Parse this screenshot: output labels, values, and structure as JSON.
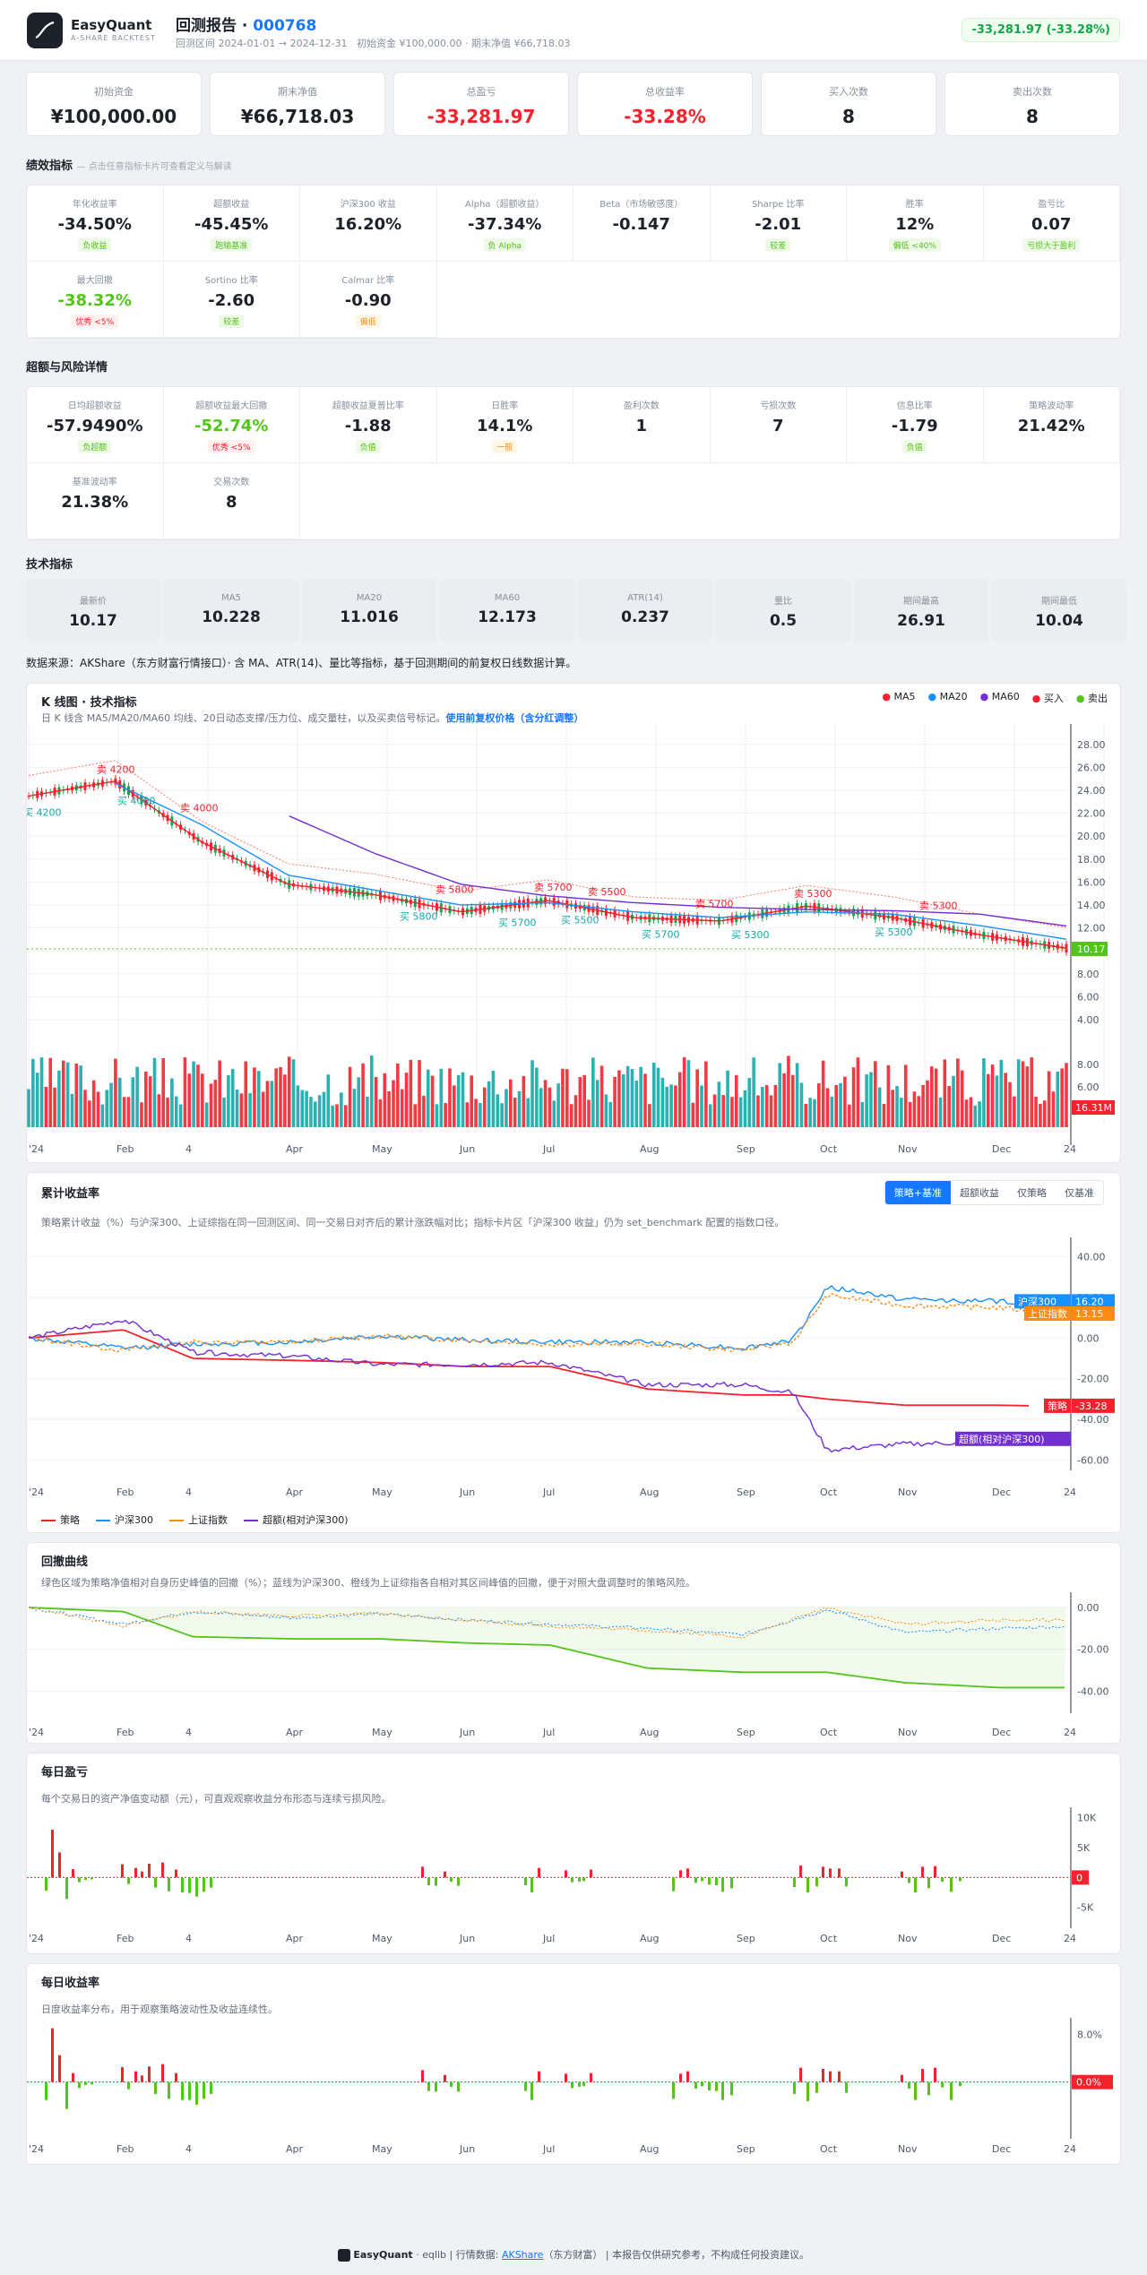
{
  "header": {
    "brand": "EasyQuant",
    "brand_sub": "A-SHARE BACKTEST",
    "title_prefix": "回测报告 · ",
    "code": "000768",
    "range": "回测区间 2024-01-01 → 2024-12-31",
    "initial": "初始资金 ¥100,000.00",
    "final": "期末净值 ¥66,718.03",
    "badge": "-33,281.97 (-33.28%)"
  },
  "summary": [
    {
      "label": "初始资金",
      "value": "¥100,000.00",
      "color": "#1d2129"
    },
    {
      "label": "期末净值",
      "value": "¥66,718.03",
      "color": "#1d2129"
    },
    {
      "label": "总盈亏",
      "value": "-33,281.97",
      "color": "#f5222d"
    },
    {
      "label": "总收益率",
      "value": "-33.28%",
      "color": "#f5222d"
    },
    {
      "label": "买入次数",
      "value": "8",
      "color": "#1d2129"
    },
    {
      "label": "卖出次数",
      "value": "8",
      "color": "#1d2129"
    }
  ],
  "perf": {
    "title": "绩效指标",
    "hint": "— 点击任意指标卡片可查看定义与解读",
    "items": [
      {
        "label": "年化收益率",
        "value": "-34.50%",
        "tag": "负收益",
        "tc": "g"
      },
      {
        "label": "超额收益",
        "value": "-45.45%",
        "tag": "跑输基准",
        "tc": "g"
      },
      {
        "label": "沪深300 收益",
        "value": "16.20%",
        "tag": "",
        "tc": ""
      },
      {
        "label": "Alpha（超额收益）",
        "value": "-37.34%",
        "tag": "负 Alpha",
        "tc": "g"
      },
      {
        "label": "Beta（市场敏感度）",
        "value": "-0.147",
        "tag": "",
        "tc": ""
      },
      {
        "label": "Sharpe 比率",
        "value": "-2.01",
        "tag": "较差",
        "tc": "g"
      },
      {
        "label": "胜率",
        "value": "12%",
        "tag": "偏低 <40%",
        "tc": "g"
      },
      {
        "label": "盈亏比",
        "value": "0.07",
        "tag": "亏损大于盈利",
        "tc": "g"
      },
      {
        "label": "最大回撤",
        "value": "-38.32%",
        "tag": "优秀 <5%",
        "tc": "r",
        "vc": "#52c41a"
      },
      {
        "label": "Sortino 比率",
        "value": "-2.60",
        "tag": "较差",
        "tc": "g"
      },
      {
        "label": "Calmar 比率",
        "value": "-0.90",
        "tag": "偏低",
        "tc": "o"
      }
    ]
  },
  "excess": {
    "title": "超额与风险详情",
    "items": [
      {
        "label": "日均超额收益",
        "value": "-57.9490%",
        "tag": "负超额",
        "tc": "g"
      },
      {
        "label": "超额收益最大回撤",
        "value": "-52.74%",
        "tag": "优秀 <5%",
        "tc": "r",
        "vc": "#52c41a"
      },
      {
        "label": "超额收益夏普比率",
        "value": "-1.88",
        "tag": "负值",
        "tc": "g"
      },
      {
        "label": "日胜率",
        "value": "14.1%",
        "tag": "一般",
        "tc": "o"
      },
      {
        "label": "盈利次数",
        "value": "1",
        "tag": "",
        "tc": ""
      },
      {
        "label": "亏损次数",
        "value": "7",
        "tag": "",
        "tc": ""
      },
      {
        "label": "信息比率",
        "value": "-1.79",
        "tag": "负值",
        "tc": "g"
      },
      {
        "label": "策略波动率",
        "value": "21.42%",
        "tag": "",
        "tc": ""
      },
      {
        "label": "基准波动率",
        "value": "21.38%",
        "tag": "",
        "tc": ""
      },
      {
        "label": "交易次数",
        "value": "8",
        "tag": "",
        "tc": ""
      }
    ]
  },
  "tech": {
    "title": "技术指标",
    "items": [
      {
        "label": "最新价",
        "value": "10.17"
      },
      {
        "label": "MA5",
        "value": "10.228"
      },
      {
        "label": "MA20",
        "value": "11.016"
      },
      {
        "label": "MA60",
        "value": "12.173"
      },
      {
        "label": "ATR(14)",
        "value": "0.237"
      },
      {
        "label": "量比",
        "value": "0.5"
      },
      {
        "label": "期间最高",
        "value": "26.91"
      },
      {
        "label": "期间最低",
        "value": "10.04"
      }
    ]
  },
  "source_note": "数据来源：AKShare（东方财富行情接口）· 含 MA、ATR(14)、量比等指标，基于回测期间的前复权日线数据计算。",
  "kline": {
    "title": "K 线图 · 技术指标",
    "desc": "日 K 线含 MA5/MA20/MA60 均线、20日动态支撑/压力位、成交量柱，以及买卖信号标记。",
    "desc_link": "使用前复权价格（含分红调整）",
    "legend": [
      {
        "name": "MA5",
        "color": "#f5222d"
      },
      {
        "name": "MA20",
        "color": "#1890ff"
      },
      {
        "name": "MA60",
        "color": "#722ed1"
      },
      {
        "name": "买入",
        "color": "#f5222d"
      },
      {
        "name": "卖出",
        "color": "#52c41a"
      }
    ],
    "last_price": "10.17",
    "last_vol": "16.31M"
  },
  "cum": {
    "title": "累计收益率",
    "desc": "策略累计收益（%）与沪深300、上证综指在同一回测区间、同一交易日对齐后的累计涨跌幅对比；指标卡片区「沪深300 收益」仍为 set_benchmark 配置的指数口径。",
    "tabs": [
      "策略+基准",
      "超额收益",
      "仅策略",
      "仅基准"
    ],
    "legend": [
      {
        "name": "策略",
        "color": "#f5222d"
      },
      {
        "name": "沪深300",
        "color": "#1890ff"
      },
      {
        "name": "上证指数",
        "color": "#fa8c16"
      },
      {
        "name": "超额(相对沪深300)",
        "color": "#722ed1"
      }
    ]
  },
  "dd": {
    "title": "回撤曲线",
    "desc": "绿色区域为策略净值相对自身历史峰值的回撤（%）；蓝线为沪深300、橙线为上证综指各自相对其区间峰值的回撤，便于对照大盘调整时的策略风险。"
  },
  "dpnl": {
    "title": "每日盈亏",
    "desc": "每个交易日的资产净值变动额（元），可直观观察收益分布形态与连续亏损风险。",
    "badge": "0"
  },
  "dret": {
    "title": "每日收益率",
    "desc": "日度收益率分布，用于观察策略波动性及收益连续性。",
    "badge": "0.0%"
  },
  "xlabels": [
    "'24",
    "Feb",
    "4",
    "Apr",
    "May",
    "Jun",
    "Jul",
    "Aug",
    "Sep",
    "Oct",
    "Nov",
    "Dec",
    "24"
  ],
  "chart_data": [
    {
      "type": "line",
      "title": "K 线图 · 技术指标",
      "x": [
        "2024-01-02",
        "2024-02-01",
        "2024-03-04",
        "2024-04-01",
        "2024-05-06",
        "2024-06-03",
        "2024-07-01",
        "2024-08-01",
        "2024-09-02",
        "2024-10-08",
        "2024-11-01",
        "2024-12-02",
        "2024-12-31"
      ],
      "series": [
        {
          "name": "MA5",
          "values": [
            23.5,
            24.8,
            19.5,
            15.8,
            14.9,
            13.4,
            14.4,
            12.9,
            12.6,
            13.9,
            12.9,
            11.4,
            10.23
          ]
        },
        {
          "name": "MA20",
          "values": [
            null,
            24.6,
            21.0,
            16.6,
            15.3,
            14.0,
            14.2,
            13.4,
            12.9,
            13.4,
            13.2,
            12.2,
            11.02
          ]
        },
        {
          "name": "MA60",
          "values": [
            null,
            null,
            null,
            21.8,
            18.5,
            15.8,
            14.8,
            14.2,
            13.8,
            13.6,
            13.5,
            13.2,
            12.17
          ]
        }
      ],
      "signals": [
        {
          "label": "买 4200",
          "type": "buy"
        },
        {
          "label": "卖 4200",
          "type": "sell"
        },
        {
          "label": "买 4000",
          "type": "buy"
        },
        {
          "label": "卖 4000",
          "type": "sell"
        },
        {
          "label": "买 5800",
          "type": "buy"
        },
        {
          "label": "卖 5800",
          "type": "sell"
        },
        {
          "label": "买 5700",
          "type": "buy"
        },
        {
          "label": "卖 5700",
          "type": "sell"
        },
        {
          "label": "买 5500",
          "type": "buy"
        },
        {
          "label": "卖 5500",
          "type": "sell"
        },
        {
          "label": "买 5700",
          "type": "buy"
        },
        {
          "label": "卖 5700",
          "type": "sell"
        },
        {
          "label": "买 5300",
          "type": "buy"
        },
        {
          "label": "卖 5300",
          "type": "sell"
        },
        {
          "label": "买 5300",
          "type": "buy"
        },
        {
          "label": "卖 5300",
          "type": "sell"
        }
      ],
      "yticks": [
        "4.00",
        "6.00",
        "8.00",
        "10.00",
        "12.00",
        "14.00",
        "16.00",
        "18.00",
        "20.00",
        "22.00",
        "24.00",
        "26.00",
        "28.00"
      ],
      "ylim": [
        4,
        29
      ]
    },
    {
      "type": "line",
      "title": "累计收益率",
      "x": [
        "2024-01-02",
        "2024-02-01",
        "2024-03-04",
        "2024-04-01",
        "2024-05-06",
        "2024-06-03",
        "2024-07-01",
        "2024-08-01",
        "2024-09-02",
        "2024-09-30",
        "2024-10-08",
        "2024-11-01",
        "2024-12-02",
        "2024-12-31"
      ],
      "series": [
        {
          "name": "策略",
          "values": [
            0,
            4,
            -10,
            -11,
            -12,
            -14,
            -14,
            -25,
            -28,
            -28,
            -30,
            -33,
            -33,
            -33.28
          ]
        },
        {
          "name": "沪深300",
          "values": [
            0,
            -5,
            -3,
            -2,
            1,
            -1,
            -2,
            -2,
            -5,
            -1,
            25,
            19,
            18,
            16.2
          ]
        },
        {
          "name": "上证指数",
          "values": [
            0,
            -6,
            -2,
            -2,
            1,
            -1,
            -3,
            -3,
            -6,
            -2,
            21,
            16,
            15,
            13.15
          ]
        },
        {
          "name": "超额(相对沪深300)",
          "values": [
            0,
            9,
            -7,
            -9,
            -13,
            -13,
            -12,
            -23,
            -23,
            -27,
            -55,
            -52,
            -51,
            -49.5
          ]
        }
      ],
      "yticks": [
        "-60.00",
        "-40.00",
        "-20.00",
        "0.00",
        "20.00",
        "40.00"
      ],
      "ylim": [
        -65,
        45
      ]
    },
    {
      "type": "area",
      "title": "回撤曲线",
      "x": [
        "2024-01-02",
        "2024-02-01",
        "2024-03-04",
        "2024-04-01",
        "2024-05-06",
        "2024-06-03",
        "2024-07-01",
        "2024-08-01",
        "2024-09-02",
        "2024-10-08",
        "2024-11-01",
        "2024-12-02",
        "2024-12-31"
      ],
      "series": [
        {
          "name": "策略",
          "values": [
            0,
            -2,
            -14,
            -15,
            -15,
            -17,
            -18,
            -29,
            -31,
            -31,
            -36,
            -38.32,
            -38.32
          ]
        },
        {
          "name": "沪深300",
          "values": [
            0,
            -8,
            -2,
            -5,
            -3,
            -6,
            -8,
            -10,
            -13,
            -1,
            -12,
            -10,
            -9
          ]
        },
        {
          "name": "上证指数",
          "values": [
            0,
            -9,
            -2,
            -4,
            -3,
            -6,
            -9,
            -11,
            -14,
            0,
            -8,
            -6,
            -6
          ]
        }
      ],
      "yticks": [
        "-40.00",
        "-20.00",
        "0.00"
      ],
      "ylim": [
        -42,
        3
      ]
    },
    {
      "type": "bar",
      "title": "每日盈亏",
      "yticks": [
        "-5K",
        "0",
        "5K",
        "10K"
      ],
      "ylim": [
        -7000,
        11000
      ],
      "values": [
        -2200,
        8000,
        4200,
        -3600,
        1400,
        -800,
        -400,
        -300,
        2200,
        -1100,
        1600,
        1000,
        2300,
        -1700,
        2500,
        -2300,
        1300,
        -2500,
        -2600,
        -3200,
        -2400,
        -1700,
        1800,
        -1300,
        -1400,
        1000,
        -700,
        -1400,
        -1300,
        -2500,
        1600,
        1200,
        -800,
        -700,
        -600,
        1300,
        -2300,
        1200,
        1500,
        -900,
        -600,
        -1200,
        -1300,
        -2400,
        -1800,
        -1600,
        2000,
        -2500,
        -1500,
        1800,
        1500,
        1500,
        -1500,
        1000,
        -900,
        -2500,
        1800,
        -1800,
        1900,
        -700,
        -2400,
        -600
      ]
    },
    {
      "type": "bar",
      "title": "每日收益率",
      "yticks": [
        "0.0%",
        "8.0%"
      ],
      "ylim": [
        -8,
        10
      ],
      "values": [
        -3,
        9,
        4.5,
        -4.5,
        1.5,
        -1,
        -0.5,
        -0.4,
        2.5,
        -1.2,
        1.8,
        1.1,
        2.6,
        -2,
        3,
        -2.8,
        1.5,
        -3,
        -3,
        -3.8,
        -2.8,
        -2,
        2,
        -1.5,
        -1.6,
        1.2,
        -0.8,
        -1.6,
        -1.5,
        -3,
        1.8,
        1.4,
        -1,
        -0.8,
        -0.7,
        1.5,
        -2.8,
        1.4,
        1.8,
        -1.1,
        -0.7,
        -1.4,
        -1.5,
        -3,
        -2.2,
        -2,
        2.4,
        -3.2,
        -1.8,
        2.2,
        1.8,
        1.8,
        -1.8,
        1.2,
        -1.1,
        -3,
        2.2,
        -2.2,
        2.4,
        -0.9,
        -3,
        -0.7
      ]
    }
  ],
  "footer": {
    "brand": "EasyQuant",
    "mid": " · eqlib | 行情数据: ",
    "link": "AKShare",
    "tail": "（东方财富） | 本报告仅供研究参考，不构成任何投资建议。"
  }
}
